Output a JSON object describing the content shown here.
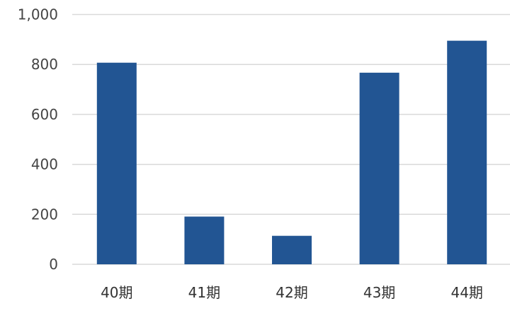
{
  "chart_data": {
    "type": "bar",
    "title": "",
    "xlabel": "",
    "ylabel": "",
    "categories": [
      "40期",
      "41期",
      "42期",
      "43期",
      "44期"
    ],
    "values": [
      807,
      191,
      114,
      767,
      895
    ],
    "ylim": [
      0,
      1000
    ],
    "yticks": [
      0,
      200,
      400,
      600,
      800,
      1000
    ],
    "ytick_labels": [
      "0",
      "200",
      "400",
      "600",
      "800",
      "1,000"
    ],
    "grid": true,
    "legend": "none",
    "colors": {
      "bar": "#225593",
      "grid": "#d9d9d9",
      "text": "#444444"
    }
  }
}
